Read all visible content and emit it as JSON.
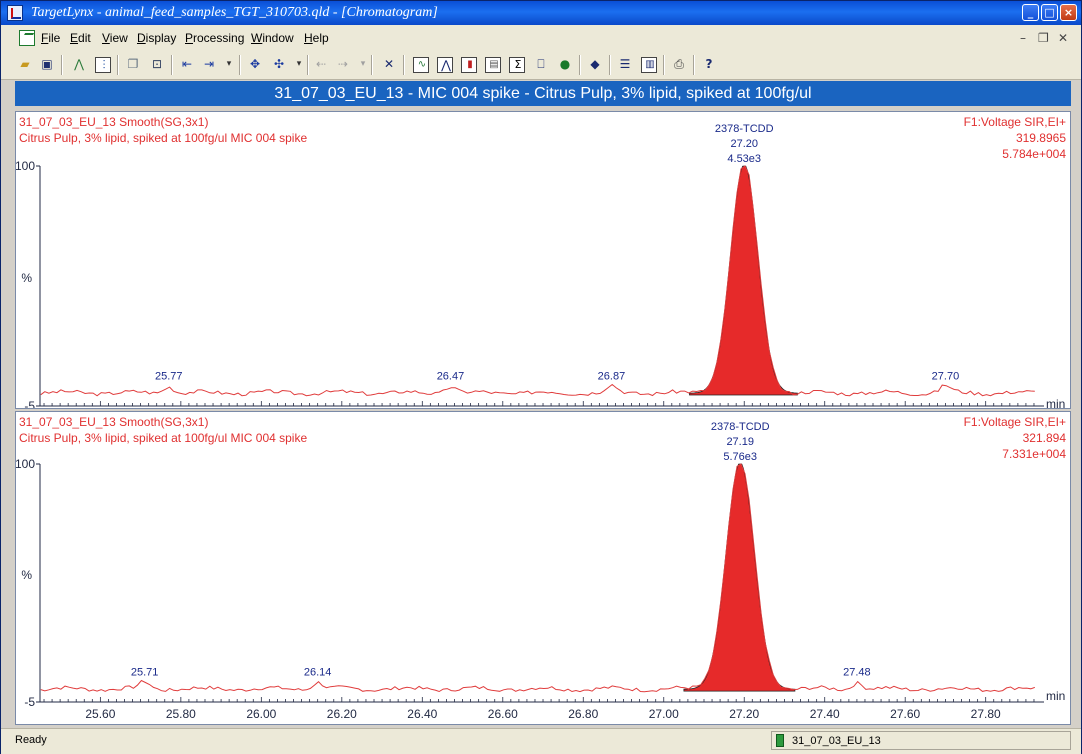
{
  "window": {
    "title": "TargetLynx - animal_feed_samples_TGT_310703.qld - [Chromatogram]"
  },
  "menu": {
    "items": [
      "File",
      "Edit",
      "View",
      "Display",
      "Processing",
      "Window",
      "Help"
    ]
  },
  "toolbar": {
    "icons": [
      "open-folder-icon",
      "save-icon",
      "peak-icon",
      "spectrum-icon",
      "copy-icon",
      "display-icon",
      "move-left-icon",
      "move-right-icon",
      "zoom-icon",
      "pan-icon",
      "undo-range-icon",
      "cross-icon",
      "chromatogram-icon",
      "peak-view-icon",
      "bar-chart-icon",
      "table-icon",
      "sum-icon",
      "book-icon",
      "globe-icon",
      "stack-icon",
      "rows-icon",
      "columns-icon",
      "print-icon",
      "help-icon"
    ]
  },
  "banner": {
    "text": "31_07_03_EU_13 - MIC 004 spike - Citrus Pulp, 3% lipid,  spiked at 100fg/ul"
  },
  "colors": {
    "trace": "#e03c3c",
    "peak_fill": "#e62a2a",
    "label_red": "#e03030",
    "label_blue": "#1a2a8a",
    "axis": "#222a44"
  },
  "chart_data": [
    {
      "type": "line",
      "header_left": [
        "31_07_03_EU_13  Smooth(SG,3x1)",
        "Citrus Pulp, 3% lipid,  spiked at 100fg/ul MIC 004 spike"
      ],
      "header_right": [
        "F1:Voltage SIR,EI+",
        "319.8965",
        "5.784e+004"
      ],
      "xlabel": "min",
      "ylabel": "%",
      "xlim": [
        25.45,
        27.93
      ],
      "ylim": [
        -5,
        100
      ],
      "yticks": [
        "100",
        "-5"
      ],
      "show_x_tick_labels": false,
      "peak": {
        "name": "2378-TCDD",
        "rt": "27.20",
        "area": "4.53e3",
        "center": 27.2,
        "height": 100,
        "sigma": 0.034
      },
      "noise_labels": [
        {
          "label": "25.77",
          "x": 25.77
        },
        {
          "label": "26.47",
          "x": 26.47
        },
        {
          "label": "26.87",
          "x": 26.87
        },
        {
          "label": "27.70",
          "x": 27.7
        }
      ],
      "noise_seed": 3
    },
    {
      "type": "line",
      "header_left": [
        "31_07_03_EU_13  Smooth(SG,3x1)",
        "Citrus Pulp, 3% lipid,  spiked at 100fg/ul MIC 004 spike"
      ],
      "header_right": [
        "F1:Voltage SIR,EI+",
        "321.894",
        "7.331e+004"
      ],
      "xlabel": "min",
      "ylabel": "%",
      "xlim": [
        25.45,
        27.93
      ],
      "ylim": [
        -5,
        100
      ],
      "yticks": [
        "100",
        "-5"
      ],
      "show_x_tick_labels": true,
      "xticks": [
        "25.60",
        "25.80",
        "26.00",
        "26.20",
        "26.40",
        "26.60",
        "26.80",
        "27.00",
        "27.20",
        "27.40",
        "27.60",
        "27.80"
      ],
      "peak": {
        "name": "2378-TCDD",
        "rt": "27.19",
        "area": "5.76e3",
        "center": 27.19,
        "height": 100,
        "sigma": 0.035
      },
      "noise_labels": [
        {
          "label": "25.71",
          "x": 25.71
        },
        {
          "label": "26.14",
          "x": 26.14
        },
        {
          "label": "27.48",
          "x": 27.48
        }
      ],
      "noise_seed": 7
    }
  ],
  "status": {
    "left": "Ready",
    "right": "31_07_03_EU_13"
  }
}
